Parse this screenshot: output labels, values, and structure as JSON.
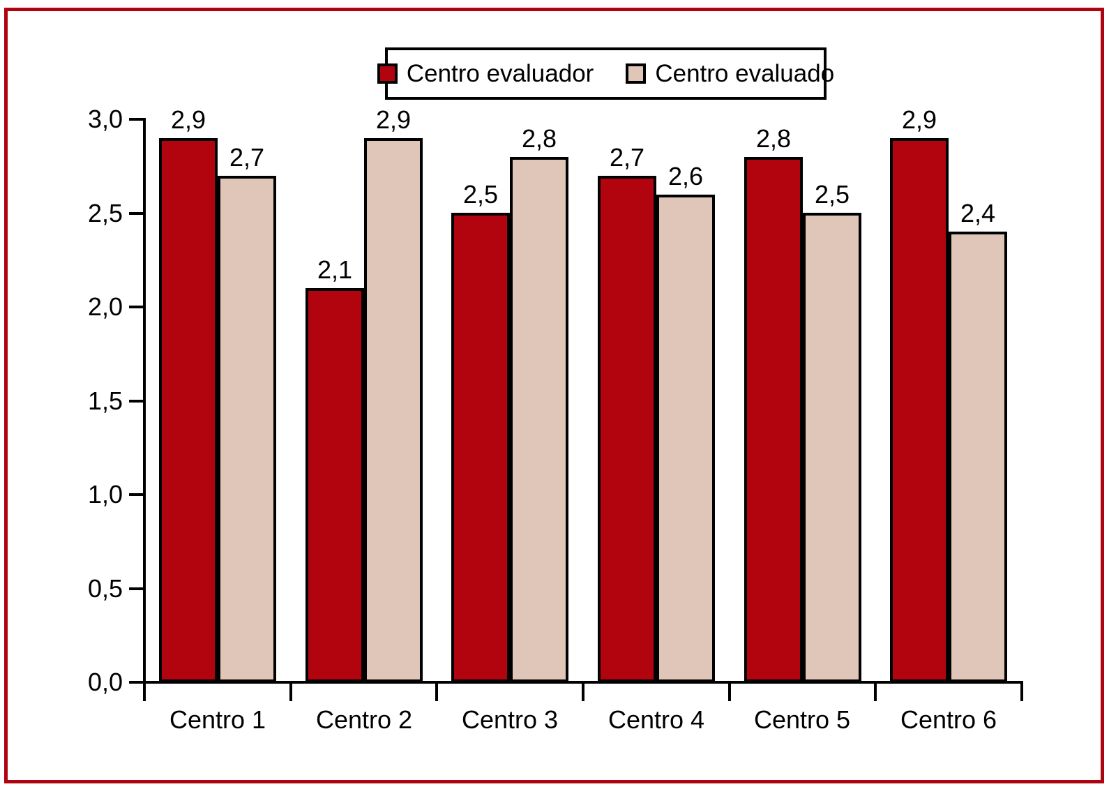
{
  "chart_data": {
    "type": "bar",
    "categories": [
      "Centro 1",
      "Centro 2",
      "Centro 3",
      "Centro 4",
      "Centro 5",
      "Centro 6"
    ],
    "series": [
      {
        "name": "Centro evaluador",
        "color": "#b2040e",
        "values": [
          2.9,
          2.1,
          2.5,
          2.7,
          2.8,
          2.9
        ],
        "value_labels": [
          "2,9",
          "2,1",
          "2,5",
          "2,7",
          "2,8",
          "2,9"
        ]
      },
      {
        "name": "Centro evaluado",
        "color": "#e0c6b8",
        "values": [
          2.7,
          2.9,
          2.8,
          2.6,
          2.5,
          2.4
        ],
        "value_labels": [
          "2,7",
          "2,9",
          "2,8",
          "2,6",
          "2,5",
          "2,4"
        ]
      }
    ],
    "title": "",
    "xlabel": "",
    "ylabel": "",
    "ylim": [
      0,
      3.0
    ],
    "yticks": [
      0,
      0.5,
      1.0,
      1.5,
      2.0,
      2.5,
      3.0
    ],
    "ytick_labels": [
      "0,0",
      "0,5",
      "1,0",
      "1,5",
      "2,0",
      "2,5",
      "3,0"
    ],
    "decimal_separator": ",",
    "grid": false,
    "legend_position": "top-center"
  },
  "legend": {
    "items": [
      {
        "label": "Centro evaluador",
        "color": "#b2040e"
      },
      {
        "label": "Centro evaluado",
        "color": "#e0c6b8"
      }
    ]
  },
  "frame": {
    "border_color": "#ae0410"
  }
}
